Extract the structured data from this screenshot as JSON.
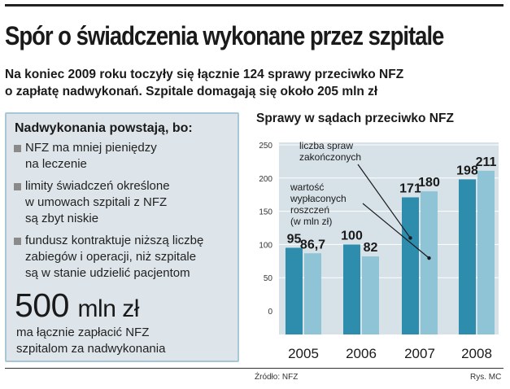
{
  "headline": "Spór o świadczenia wykonane przez szpitale",
  "lead": {
    "line1": "Na koniec 2009 roku toczyły się łącznie 124 sprawy przeciwko NFZ",
    "line2": "o zapłatę nadwykonań.  Szpitale domagają się około 205 mln zł"
  },
  "sidebox": {
    "title": "Nadwykonania powstają, bo:",
    "reasons": [
      {
        "lines": [
          "NFZ ma mniej pieniędzy",
          "na leczenie"
        ]
      },
      {
        "lines": [
          "limity świadczeń określone",
          "w umowach szpitali z NFZ",
          "są zbyt niskie"
        ]
      },
      {
        "lines": [
          "fundusz kontraktuje niższą liczbę",
          "zabiegów i operacji, niż szpitale",
          "są w stanie udzielić pacjentom"
        ]
      }
    ],
    "big_number": "500",
    "big_unit": "mln zł",
    "caption_line1": "ma łącznie zapłacić NFZ",
    "caption_line2": "szpitalom za nadwykonania"
  },
  "chart_title": "Sprawy w sądach przeciwko NFZ",
  "chart_data": {
    "type": "bar",
    "categories": [
      "2005",
      "2006",
      "2007",
      "2008"
    ],
    "series": [
      {
        "name": "liczba spraw zakończonych",
        "values": [
          95,
          100,
          171,
          198
        ],
        "labels": [
          "95",
          "100",
          "171",
          "198"
        ],
        "color": "#2e8cad"
      },
      {
        "name": "wartość wypłaconych roszczeń (w mln zł)",
        "values": [
          86.7,
          82,
          180,
          211
        ],
        "labels": [
          "86,7",
          "82",
          "180",
          "211"
        ],
        "color": "#8fc3d6"
      }
    ],
    "legend_lines": [
      [
        "liczba spraw",
        "zakończonych"
      ],
      [
        "wartość",
        "wypłaconych",
        "roszczeń",
        "(w mln zł)"
      ]
    ],
    "y_ticks": [
      "0",
      "50",
      "100",
      "150",
      "200",
      "250"
    ],
    "ylim": [
      0,
      250
    ],
    "grid": true,
    "panel_color": "#d6e1e8",
    "gridline_color": "#ffffff"
  },
  "footer": {
    "source": "Źródło: NFZ",
    "credit": "Rys. MC"
  }
}
